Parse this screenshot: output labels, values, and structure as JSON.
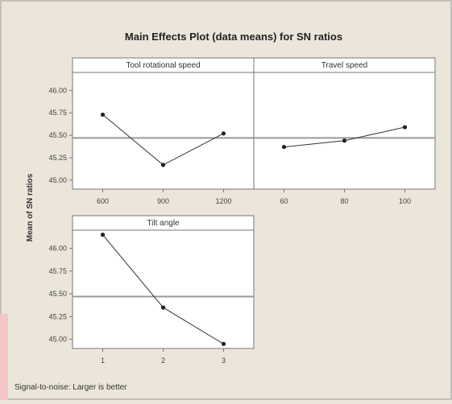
{
  "chart_data": {
    "type": "line",
    "title": "Main Effects Plot (data means) for SN ratios",
    "ylabel": "Mean of SN ratios",
    "footnote": "Signal-to-noise: Larger is better",
    "ylim": [
      44.9,
      46.2
    ],
    "yticks": [
      45.0,
      45.25,
      45.5,
      45.75,
      46.0
    ],
    "ytick_labels": [
      "45.00",
      "45.25",
      "45.50",
      "45.75",
      "46.00"
    ],
    "grand_mean": 45.47,
    "panels": [
      {
        "name": "Tool rotational speed",
        "categories": [
          "600",
          "900",
          "1200"
        ],
        "values": [
          45.73,
          45.17,
          45.52
        ]
      },
      {
        "name": "Travel speed",
        "categories": [
          "60",
          "80",
          "100"
        ],
        "values": [
          45.37,
          45.44,
          45.59
        ]
      },
      {
        "name": "Tilt angle",
        "categories": [
          "1",
          "2",
          "3"
        ],
        "values": [
          46.15,
          45.35,
          44.95
        ]
      }
    ]
  }
}
